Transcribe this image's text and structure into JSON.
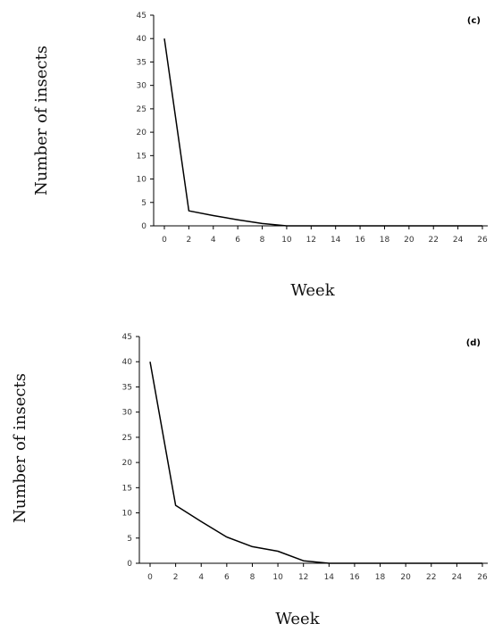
{
  "chart_data": [
    {
      "type": "line",
      "panel_label": "(c)",
      "xlabel": "Week",
      "ylabel": "Number of insects",
      "x_ticks": [
        0,
        2,
        4,
        6,
        8,
        10,
        12,
        14,
        16,
        18,
        20,
        22,
        24,
        26
      ],
      "y_ticks": [
        0,
        5,
        10,
        15,
        20,
        25,
        30,
        35,
        40,
        45
      ],
      "xlim": [
        0,
        26
      ],
      "ylim": [
        0,
        45
      ],
      "grid": false,
      "series": [
        {
          "x": [
            0,
            2,
            4,
            6,
            8,
            10,
            12,
            14,
            16,
            18,
            20,
            22,
            24,
            26
          ],
          "y": [
            40,
            3.2,
            2.2,
            1.3,
            0.5,
            0,
            0,
            0,
            0,
            0,
            0,
            0,
            0,
            0
          ]
        }
      ],
      "line_color": "#000000"
    },
    {
      "type": "line",
      "panel_label": "(d)",
      "xlabel": "Week",
      "ylabel": "Number of insects",
      "x_ticks": [
        0,
        2,
        4,
        6,
        8,
        10,
        12,
        14,
        16,
        18,
        20,
        22,
        24,
        26
      ],
      "y_ticks": [
        0,
        5,
        10,
        15,
        20,
        25,
        30,
        35,
        40,
        45
      ],
      "xlim": [
        0,
        26
      ],
      "ylim": [
        0,
        45
      ],
      "grid": false,
      "series": [
        {
          "x": [
            0,
            2,
            4,
            6,
            8,
            10,
            12,
            14,
            16,
            18,
            20,
            22,
            24,
            26
          ],
          "y": [
            40,
            11.5,
            8.3,
            5.2,
            3.3,
            2.4,
            0.5,
            0,
            0,
            0,
            0,
            0,
            0,
            0
          ]
        }
      ],
      "line_color": "#000000"
    }
  ]
}
